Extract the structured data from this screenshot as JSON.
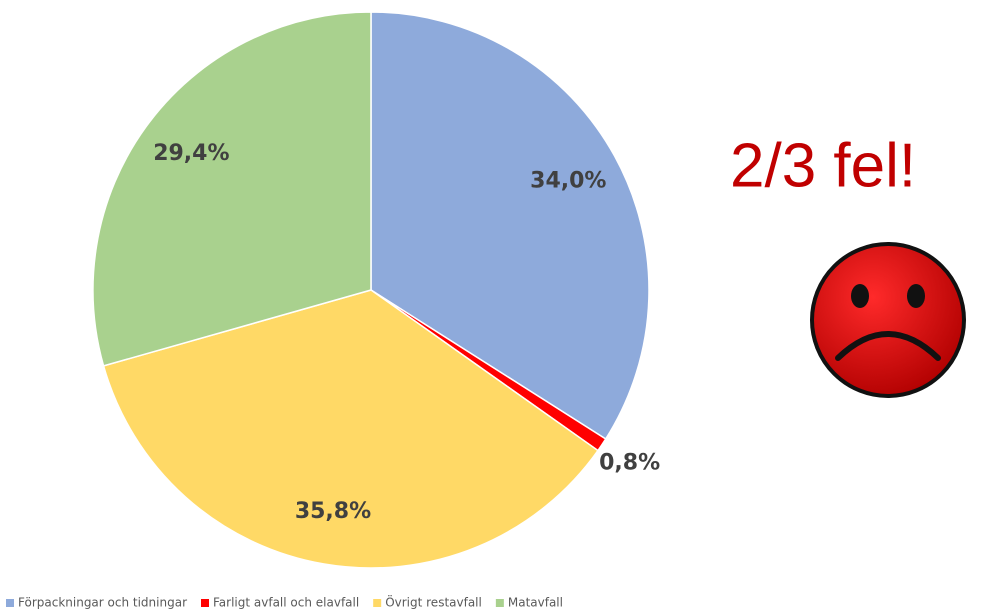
{
  "chart_data": {
    "type": "pie",
    "categories": [
      "Förpackningar och tidningar",
      "Farligt avfall och elavfall",
      "Övrigt restavfall",
      "Matavfall"
    ],
    "values": [
      34.0,
      0.8,
      35.8,
      29.4
    ],
    "value_labels": [
      "34,0%",
      "0,8%",
      "35,8%",
      "29,4%"
    ],
    "colors": [
      "#8eaadb",
      "#ff0000",
      "#ffd966",
      "#a9d18e"
    ],
    "legend": "bottom",
    "annotation": "2/3 fel!"
  }
}
